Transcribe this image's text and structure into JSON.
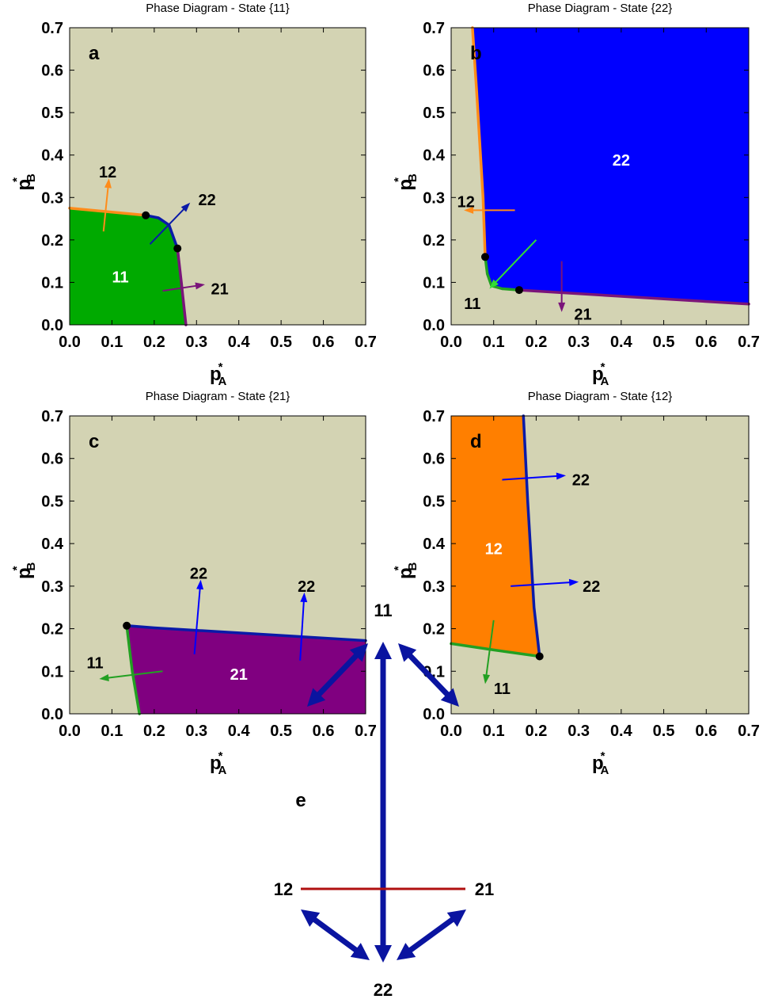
{
  "colors": {
    "background": "#d3d3b3",
    "state_11": "#00aa00",
    "state_22": "#0000ff",
    "state_21": "#800080",
    "state_12": "#ff7f00",
    "boundary_blue": "#0a1aa8",
    "boundary_green": "#22a022",
    "boundary_orange": "#ff8c1a",
    "boundary_purple": "#7a147a",
    "arrow_light_green": "#33dd33",
    "transition_edge": "#0a14a0",
    "forbidden_edge": "#b01010"
  },
  "axis_labels": {
    "x_main": "p",
    "x_sub": "A",
    "y_main": "p",
    "y_sub": "B",
    "star": "*"
  },
  "chart_data": [
    {
      "type": "area",
      "panel": "a",
      "title": "Phase Diagram - State {11}",
      "xlim": [
        0,
        0.7
      ],
      "ylim": [
        0,
        0.7
      ],
      "xticks": [
        "0.0",
        "0.1",
        "0.2",
        "0.3",
        "0.4",
        "0.5",
        "0.6",
        "0.7"
      ],
      "yticks": [
        "0.0",
        "0.1",
        "0.2",
        "0.3",
        "0.4",
        "0.5",
        "0.6",
        "0.7"
      ],
      "grid": false,
      "regions": [
        {
          "label": "11",
          "color_key": "state_11",
          "label_at": [
            0.12,
            0.115
          ],
          "polygon": [
            [
              0,
              0
            ],
            [
              0,
              0.275
            ],
            [
              0.18,
              0.258
            ],
            [
              0.21,
              0.252
            ],
            [
              0.235,
              0.235
            ],
            [
              0.255,
              0.18
            ],
            [
              0.264,
              0.1
            ],
            [
              0.275,
              0
            ]
          ]
        }
      ],
      "boundaries": [
        {
          "color_key": "boundary_orange",
          "points": [
            [
              0,
              0.275
            ],
            [
              0.18,
              0.258
            ]
          ]
        },
        {
          "color_key": "boundary_blue",
          "points": [
            [
              0.18,
              0.258
            ],
            [
              0.21,
              0.252
            ],
            [
              0.235,
              0.235
            ],
            [
              0.255,
              0.18
            ]
          ]
        },
        {
          "color_key": "boundary_purple",
          "points": [
            [
              0.255,
              0.18
            ],
            [
              0.264,
              0.1
            ],
            [
              0.275,
              0
            ]
          ]
        }
      ],
      "points": [
        [
          0.18,
          0.258
        ],
        [
          0.255,
          0.18
        ]
      ],
      "arrows": [
        {
          "color_key": "boundary_orange",
          "from": [
            0.08,
            0.22
          ],
          "to": [
            0.093,
            0.345
          ],
          "label": "12",
          "label_at": [
            0.09,
            0.36
          ]
        },
        {
          "color_key": "boundary_blue",
          "from": [
            0.19,
            0.19
          ],
          "to": [
            0.285,
            0.288
          ],
          "label": "22",
          "label_at": [
            0.325,
            0.295
          ]
        },
        {
          "color_key": "boundary_purple",
          "from": [
            0.22,
            0.08
          ],
          "to": [
            0.32,
            0.095
          ],
          "label": "21",
          "label_at": [
            0.355,
            0.085
          ]
        }
      ]
    },
    {
      "type": "area",
      "panel": "b",
      "title": "Phase Diagram - State {22}",
      "xlim": [
        0,
        0.7
      ],
      "ylim": [
        0,
        0.7
      ],
      "xticks": [
        "0.0",
        "0.1",
        "0.2",
        "0.3",
        "0.4",
        "0.5",
        "0.6",
        "0.7"
      ],
      "yticks": [
        "0.0",
        "0.1",
        "0.2",
        "0.3",
        "0.4",
        "0.5",
        "0.6",
        "0.7"
      ],
      "grid": false,
      "regions": [
        {
          "label": "22",
          "color_key": "state_22",
          "label_at": [
            0.4,
            0.39
          ],
          "polygon": [
            [
              0.05,
              0.7
            ],
            [
              0.7,
              0.7
            ],
            [
              0.7,
              0.049
            ],
            [
              0.16,
              0.082
            ],
            [
              0.12,
              0.085
            ],
            [
              0.095,
              0.092
            ],
            [
              0.085,
              0.12
            ],
            [
              0.08,
              0.16
            ],
            [
              0.075,
              0.3
            ],
            [
              0.06,
              0.55
            ],
            [
              0.05,
              0.7
            ]
          ]
        }
      ],
      "boundaries": [
        {
          "color_key": "boundary_orange",
          "points": [
            [
              0.05,
              0.7
            ],
            [
              0.06,
              0.55
            ],
            [
              0.075,
              0.3
            ],
            [
              0.08,
              0.16
            ]
          ]
        },
        {
          "color_key": "boundary_green",
          "points": [
            [
              0.08,
              0.16
            ],
            [
              0.085,
              0.12
            ],
            [
              0.095,
              0.092
            ],
            [
              0.12,
              0.085
            ],
            [
              0.16,
              0.082
            ]
          ]
        },
        {
          "color_key": "boundary_purple",
          "points": [
            [
              0.16,
              0.082
            ],
            [
              0.7,
              0.049
            ]
          ]
        }
      ],
      "points": [
        [
          0.08,
          0.16
        ],
        [
          0.16,
          0.082
        ]
      ],
      "arrows": [
        {
          "color_key": "boundary_orange",
          "from": [
            0.15,
            0.27
          ],
          "to": [
            0.03,
            0.27
          ],
          "label": "12",
          "label_at": [
            0.035,
            0.29
          ]
        },
        {
          "color_key": "arrow_light_green",
          "from": [
            0.2,
            0.2
          ],
          "to": [
            0.09,
            0.085
          ],
          "label": "11",
          "label_at": [
            0.05,
            0.05
          ]
        },
        {
          "color_key": "boundary_purple",
          "from": [
            0.26,
            0.15
          ],
          "to": [
            0.26,
            0.03
          ],
          "label": "21",
          "label_at": [
            0.31,
            0.025
          ]
        }
      ]
    },
    {
      "type": "area",
      "panel": "c",
      "title": "Phase Diagram - State {21}",
      "xlim": [
        0,
        0.7
      ],
      "ylim": [
        0,
        0.7
      ],
      "xticks": [
        "0.0",
        "0.1",
        "0.2",
        "0.3",
        "0.4",
        "0.5",
        "0.6",
        "0.7"
      ],
      "yticks": [
        "0.0",
        "0.1",
        "0.2",
        "0.3",
        "0.4",
        "0.5",
        "0.6",
        "0.7"
      ],
      "grid": false,
      "regions": [
        {
          "label": "21",
          "color_key": "state_21",
          "label_at": [
            0.4,
            0.095
          ],
          "polygon": [
            [
              0.135,
              0.207
            ],
            [
              0.2,
              0.202
            ],
            [
              0.4,
              0.19
            ],
            [
              0.7,
              0.172
            ],
            [
              0.7,
              0
            ],
            [
              0.165,
              0
            ],
            [
              0.148,
              0.1
            ],
            [
              0.135,
              0.207
            ]
          ]
        }
      ],
      "boundaries": [
        {
          "color_key": "boundary_blue",
          "points": [
            [
              0.135,
              0.207
            ],
            [
              0.2,
              0.202
            ],
            [
              0.4,
              0.19
            ],
            [
              0.7,
              0.172
            ]
          ]
        },
        {
          "color_key": "boundary_green",
          "points": [
            [
              0.135,
              0.207
            ],
            [
              0.148,
              0.1
            ],
            [
              0.165,
              0
            ]
          ]
        }
      ],
      "points": [
        [
          0.135,
          0.207
        ]
      ],
      "arrows": [
        {
          "color_key": "boundary_green",
          "from": [
            0.22,
            0.1
          ],
          "to": [
            0.07,
            0.082
          ],
          "label": "11",
          "label_at": [
            0.06,
            0.12
          ]
        },
        {
          "color_key": "state_22",
          "from": [
            0.295,
            0.14
          ],
          "to": [
            0.31,
            0.315
          ],
          "label": "22",
          "label_at": [
            0.305,
            0.33
          ]
        },
        {
          "color_key": "state_22",
          "from": [
            0.545,
            0.125
          ],
          "to": [
            0.555,
            0.285
          ],
          "label": "22",
          "label_at": [
            0.56,
            0.3
          ]
        }
      ]
    },
    {
      "type": "area",
      "panel": "d",
      "title": "Phase Diagram - State {12}",
      "xlim": [
        0,
        0.7
      ],
      "ylim": [
        0,
        0.7
      ],
      "xticks": [
        "0.0",
        "0.1",
        "0.2",
        "0.3",
        "0.4",
        "0.5",
        "0.6",
        "0.7"
      ],
      "yticks": [
        "0.0",
        "0.1",
        "0.2",
        "0.3",
        "0.4",
        "0.5",
        "0.6",
        "0.7"
      ],
      "grid": false,
      "regions": [
        {
          "label": "12",
          "color_key": "state_12",
          "label_at": [
            0.1,
            0.39
          ],
          "polygon": [
            [
              0,
              0.7
            ],
            [
              0.17,
              0.7
            ],
            [
              0.18,
              0.5
            ],
            [
              0.195,
              0.25
            ],
            [
              0.208,
              0.135
            ],
            [
              0.1,
              0.15
            ],
            [
              0,
              0.165
            ]
          ]
        }
      ],
      "boundaries": [
        {
          "color_key": "boundary_blue",
          "points": [
            [
              0.17,
              0.7
            ],
            [
              0.18,
              0.5
            ],
            [
              0.195,
              0.25
            ],
            [
              0.208,
              0.135
            ]
          ]
        },
        {
          "color_key": "boundary_green",
          "points": [
            [
              0,
              0.165
            ],
            [
              0.1,
              0.15
            ],
            [
              0.208,
              0.135
            ]
          ]
        }
      ],
      "points": [
        [
          0.208,
          0.135
        ]
      ],
      "arrows": [
        {
          "color_key": "state_22",
          "from": [
            0.12,
            0.55
          ],
          "to": [
            0.27,
            0.56
          ],
          "label": "22",
          "label_at": [
            0.305,
            0.55
          ]
        },
        {
          "color_key": "state_22",
          "from": [
            0.14,
            0.3
          ],
          "to": [
            0.3,
            0.31
          ],
          "label": "22",
          "label_at": [
            0.33,
            0.3
          ]
        },
        {
          "color_key": "boundary_green",
          "from": [
            0.1,
            0.22
          ],
          "to": [
            0.08,
            0.07
          ],
          "label": "11",
          "label_at": [
            0.12,
            0.06
          ]
        }
      ]
    }
  ],
  "transition_diagram": {
    "panel": "e",
    "nodes": [
      {
        "id": "11",
        "label": "11"
      },
      {
        "id": "12",
        "label": "12"
      },
      {
        "id": "21",
        "label": "21"
      },
      {
        "id": "22",
        "label": "22"
      }
    ],
    "edges": [
      {
        "from": "11",
        "to": "12",
        "kind": "bidirectional",
        "color_key": "transition_edge"
      },
      {
        "from": "11",
        "to": "21",
        "kind": "bidirectional",
        "color_key": "transition_edge"
      },
      {
        "from": "11",
        "to": "22",
        "kind": "bidirectional",
        "color_key": "transition_edge"
      },
      {
        "from": "12",
        "to": "22",
        "kind": "bidirectional",
        "color_key": "transition_edge"
      },
      {
        "from": "21",
        "to": "22",
        "kind": "bidirectional",
        "color_key": "transition_edge"
      },
      {
        "from": "12",
        "to": "21",
        "kind": "line",
        "color_key": "forbidden_edge"
      }
    ]
  }
}
